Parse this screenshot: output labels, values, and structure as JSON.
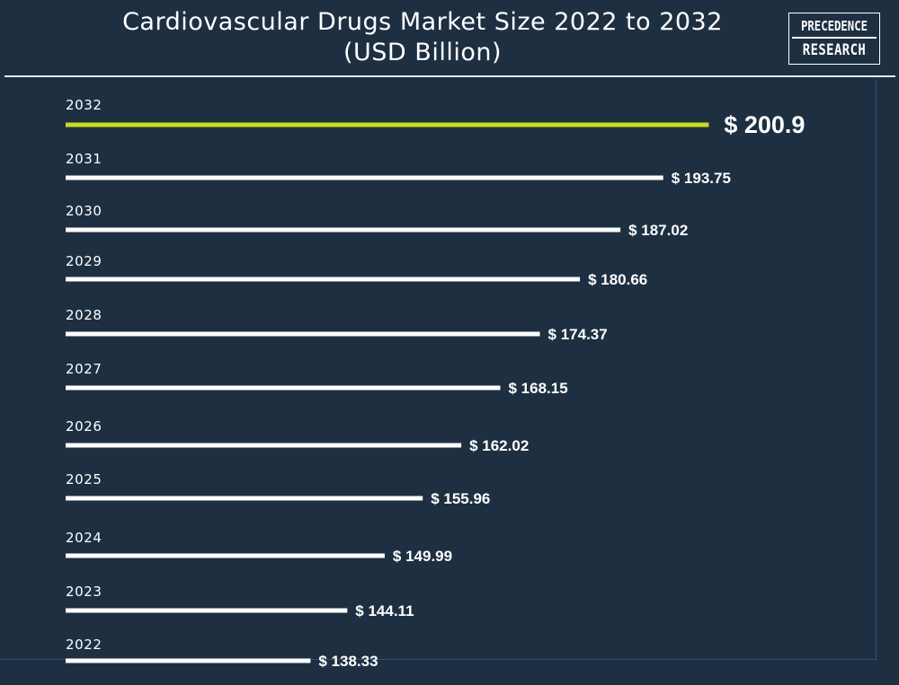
{
  "title_line1": "Cardiovascular Drugs Market Size 2022 to 2032",
  "title_line2": "(USD Billion)",
  "logo": {
    "line1": "PRECEDENCE",
    "line2": "RESEARCH"
  },
  "colors": {
    "background": "#1e2f42",
    "bar": "#ffffff",
    "highlight_bar": "#c8dc1e",
    "text": "#ffffff"
  },
  "chart_data": {
    "type": "bar",
    "orientation": "horizontal",
    "title": "Cardiovascular Drugs Market Size 2022 to 2032 (USD Billion)",
    "categories": [
      "2032",
      "2031",
      "2030",
      "2029",
      "2028",
      "2027",
      "2026",
      "2025",
      "2024",
      "2023",
      "2022"
    ],
    "values": [
      200.9,
      193.75,
      187.02,
      180.66,
      174.37,
      168.15,
      162.02,
      155.96,
      149.99,
      144.11,
      138.33
    ],
    "value_labels": [
      "$ 200.9",
      "$ 193.75",
      "$ 187.02",
      "$ 180.66",
      "$ 174.37",
      "$ 168.15",
      "$ 162.02",
      "$ 155.96",
      "$ 149.99",
      "$ 144.11",
      "$ 138.33"
    ],
    "highlight": "2032",
    "grid": false,
    "legend": "none"
  }
}
